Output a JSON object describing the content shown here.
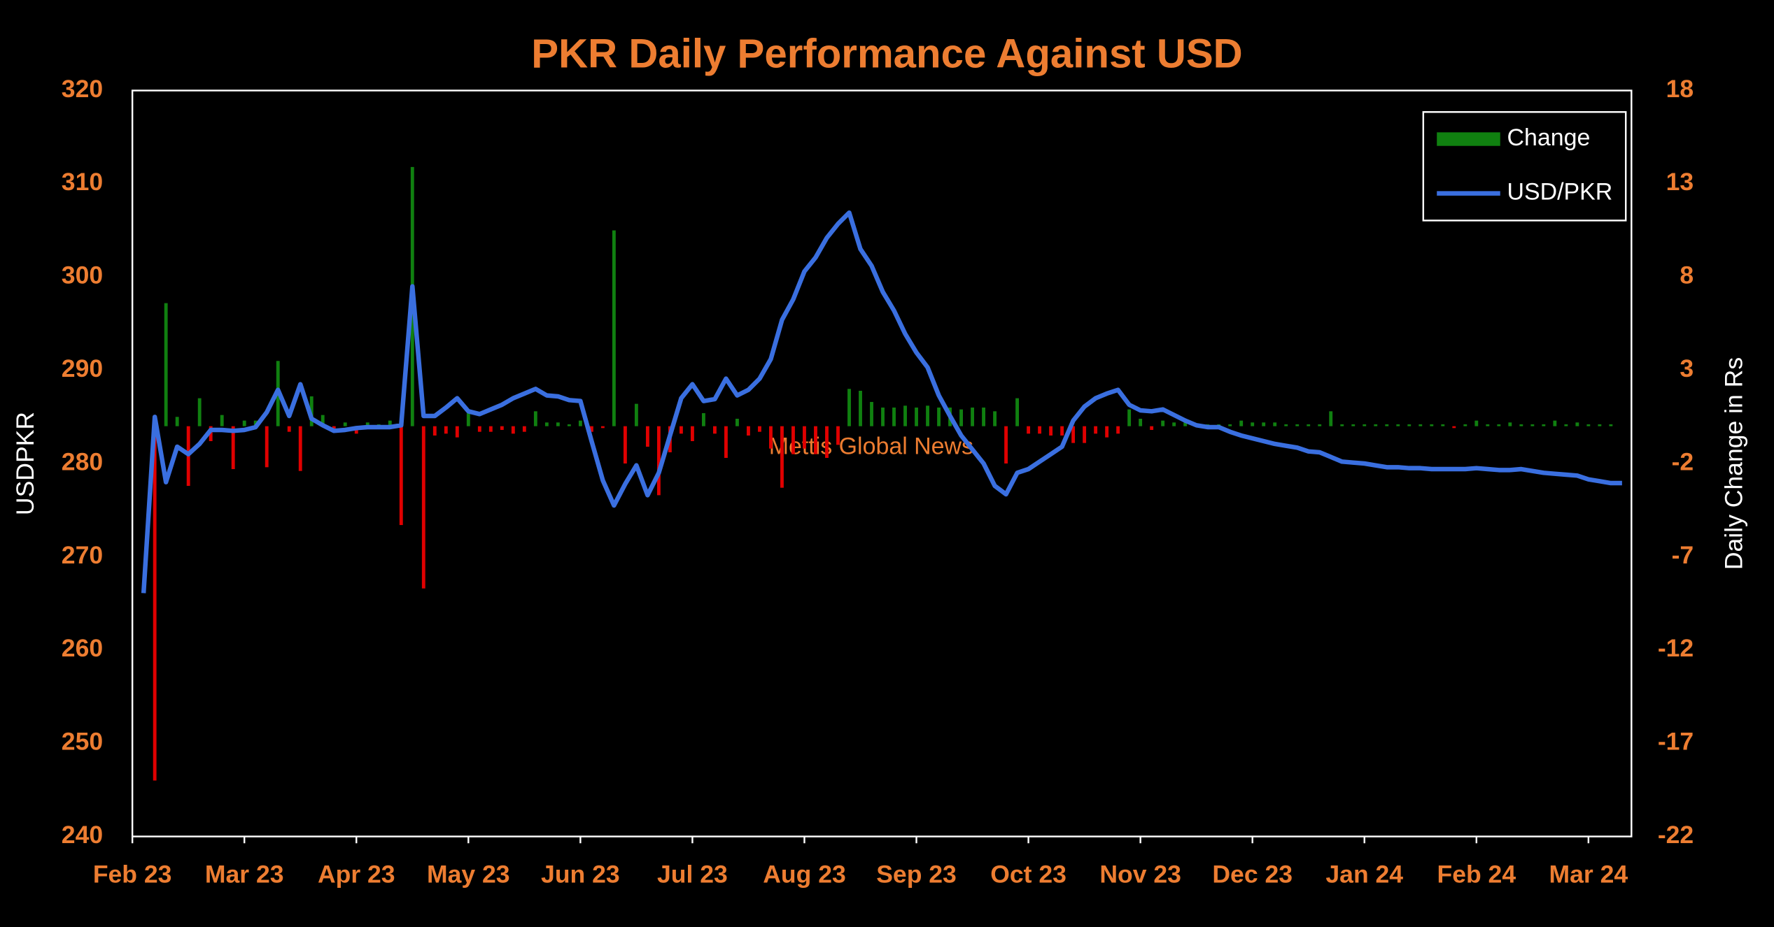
{
  "chart_data": {
    "type": "bar-line",
    "title": "PKR Daily Performance Against USD",
    "y_label": "USDPKR",
    "y2_label": "Daily Change in Rs",
    "annotation": "Mettis Global News",
    "legend": "top-right",
    "ylim": [
      240,
      320
    ],
    "yticks": [
      240,
      250,
      260,
      270,
      280,
      290,
      300,
      310,
      320
    ],
    "y2lim": [
      -22,
      18
    ],
    "y2ticks": [
      -22,
      -17,
      -12,
      -7,
      -2,
      3,
      8,
      13,
      18
    ],
    "categories": [
      "Feb 23",
      null,
      null,
      null,
      null,
      null,
      null,
      null,
      null,
      null,
      "Mar 23",
      null,
      null,
      null,
      null,
      null,
      null,
      null,
      null,
      null,
      "Apr 23",
      null,
      null,
      null,
      null,
      null,
      null,
      null,
      null,
      null,
      "May 23",
      null,
      null,
      null,
      null,
      null,
      null,
      null,
      null,
      null,
      "Jun 23",
      null,
      null,
      null,
      null,
      null,
      null,
      null,
      null,
      null,
      "Jul 23",
      null,
      null,
      null,
      null,
      null,
      null,
      null,
      null,
      null,
      "Aug 23",
      null,
      null,
      null,
      null,
      null,
      null,
      null,
      null,
      null,
      "Sep 23",
      null,
      null,
      null,
      null,
      null,
      null,
      null,
      null,
      null,
      "Oct 23",
      null,
      null,
      null,
      null,
      null,
      null,
      null,
      null,
      null,
      "Nov 23",
      null,
      null,
      null,
      null,
      null,
      null,
      null,
      null,
      null,
      "Dec 23",
      null,
      null,
      null,
      null,
      null,
      null,
      null,
      null,
      null,
      "Jan 24",
      null,
      null,
      null,
      null,
      null,
      null,
      null,
      null,
      null,
      "Feb 24",
      null,
      null,
      null,
      null,
      null,
      null,
      null,
      null,
      null,
      "Mar 24",
      null,
      null,
      null
    ],
    "series": [
      {
        "name": "Change",
        "type": "bar",
        "axis": "y2",
        "color": "#108010",
        "negative_color": "#e00000",
        "values": [
          null,
          null,
          -19.0,
          6.6,
          0.5,
          -3.2,
          1.5,
          -0.8,
          0.6,
          -2.3,
          0.3,
          0.3,
          -2.2,
          3.5,
          -0.3,
          -2.4,
          1.6,
          0.6,
          -0.3,
          0.2,
          -0.4,
          0.2,
          0.1,
          0.3,
          -5.3,
          13.9,
          -8.7,
          -0.5,
          -0.4,
          -0.6,
          0.7,
          -0.3,
          -0.3,
          -0.2,
          -0.4,
          -0.3,
          0.8,
          0.2,
          0.2,
          0.1,
          0.3,
          -0.3,
          -0.1,
          10.5,
          -2.0,
          1.2,
          -1.1,
          -3.7,
          -1.4,
          -0.4,
          -0.8,
          0.7,
          -0.4,
          -1.7,
          0.4,
          -0.5,
          -0.3,
          -1.2,
          -3.3,
          -1.5,
          -1.2,
          -1.5,
          -1.7,
          -1.0,
          2.0,
          1.9,
          1.3,
          1.0,
          1.0,
          1.1,
          1.0,
          1.1,
          1.0,
          1.0,
          0.9,
          1.0,
          1.0,
          0.8,
          -2.0,
          1.5,
          -0.4,
          -0.4,
          -0.5,
          -0.5,
          -0.9,
          -0.9,
          -0.4,
          -0.6,
          -0.4,
          0.9,
          0.4,
          -0.2,
          0.3,
          0.2,
          0.2,
          0.1,
          0.1,
          0.1,
          0.1,
          0.3,
          0.2,
          0.2,
          0.2,
          0.1,
          0.1,
          0.1,
          0.1,
          0.8,
          0.1,
          0.1,
          0.1,
          0.1,
          0.1,
          0.1,
          0.1,
          0.1,
          0.1,
          0.1,
          -0.1,
          0.1,
          0.3,
          0.1,
          0.1,
          0.2,
          0.1,
          0.1,
          0.1,
          0.3,
          0.1,
          0.2,
          0.1,
          0.1,
          0.1,
          null
        ]
      },
      {
        "name": "USD/PKR",
        "type": "line",
        "color": "#3a6fe0",
        "values": [
          null,
          266.1,
          285.0,
          278.0,
          281.8,
          281.0,
          282.1,
          283.6,
          283.6,
          283.5,
          283.6,
          283.9,
          285.5,
          287.9,
          285.1,
          288.5,
          284.8,
          284.1,
          283.5,
          283.6,
          283.8,
          283.9,
          283.9,
          283.9,
          284.1,
          299.0,
          285.1,
          285.1,
          286.0,
          287.0,
          285.6,
          285.3,
          285.8,
          286.3,
          287.0,
          287.5,
          288.0,
          287.3,
          287.2,
          286.8,
          286.7,
          282.4,
          278.2,
          275.5,
          277.8,
          279.8,
          276.6,
          279.0,
          283.0,
          287.0,
          288.5,
          286.7,
          286.9,
          289.1,
          287.3,
          287.9,
          289.1,
          291.2,
          295.4,
          297.6,
          300.6,
          302.1,
          304.2,
          305.7,
          306.9,
          303.0,
          301.2,
          298.4,
          296.4,
          293.9,
          291.9,
          290.3,
          287.3,
          285.1,
          283.0,
          281.5,
          280.0,
          277.6,
          276.7,
          279.0,
          279.4,
          280.2,
          281.0,
          281.8,
          284.6,
          286.1,
          287.0,
          287.5,
          287.9,
          286.3,
          285.7,
          285.6,
          285.8,
          285.2,
          284.6,
          284.1,
          283.9,
          283.9,
          283.4,
          283.0,
          282.7,
          282.4,
          282.1,
          281.9,
          281.7,
          281.3,
          281.2,
          280.7,
          280.2,
          280.1,
          280.0,
          279.8,
          279.6,
          279.6,
          279.5,
          279.5,
          279.4,
          279.4,
          279.4,
          279.4,
          279.5,
          279.4,
          279.3,
          279.3,
          279.4,
          279.2,
          279.0,
          278.9,
          278.8,
          278.7,
          278.3,
          278.1,
          277.9,
          277.9
        ]
      }
    ]
  }
}
